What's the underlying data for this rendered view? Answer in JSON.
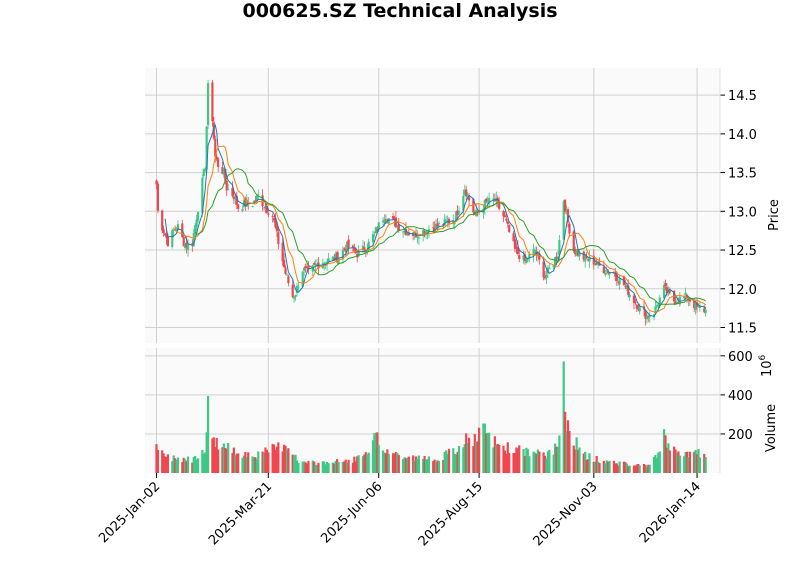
{
  "chart_data": {
    "type": "candlestick",
    "title": "000625.SZ Technical Analysis",
    "colors": {
      "up": "#3dc985",
      "down": "#f0464f",
      "ma_short": "#1f77b4",
      "ma_mid": "#ff7f0e",
      "ma_long": "#2ca02c",
      "panel_bg": "#fafafa",
      "grid": "#d0d0d0"
    },
    "price_panel": {
      "ylabel": "Price",
      "ylim": [
        11.3,
        14.85
      ],
      "yticks": [
        11.5,
        12.0,
        12.5,
        13.0,
        13.5,
        14.0,
        14.5
      ],
      "ytick_labels": [
        "11.5",
        "12.0",
        "12.5",
        "13.0",
        "13.5",
        "14.0",
        "14.5"
      ],
      "y_axis_side": "right",
      "grid": true
    },
    "volume_panel": {
      "ylabel": "Volume",
      "exponent_label": "6",
      "ylim": [
        0,
        640
      ],
      "yticks": [
        200,
        400,
        600
      ],
      "ytick_labels": [
        "200",
        "400",
        "600"
      ],
      "y_axis_side": "right",
      "grid": true
    },
    "x_axis": {
      "range": [
        "2024-12-25",
        "2026-01-30"
      ],
      "ticks": [
        "2025-01-02",
        "2025-03-21",
        "2025-06-06",
        "2025-08-15",
        "2025-11-03",
        "2026-01-14"
      ],
      "tick_labels": [
        "2025-Jan-02",
        "2025-Mar-21",
        "2025-Jun-06",
        "2025-Aug-15",
        "2025-Nov-03",
        "2026-Jan-14"
      ],
      "tick_label_rotation": 45
    },
    "price_anchors": {
      "dates": [
        "2025-01-02",
        "2025-01-03",
        "2025-01-06",
        "2025-01-08",
        "2025-01-10",
        "2025-01-14",
        "2025-01-17",
        "2025-01-21",
        "2025-01-24",
        "2025-01-27",
        "2025-02-05",
        "2025-02-07",
        "2025-02-10",
        "2025-02-12",
        "2025-02-14",
        "2025-02-18",
        "2025-02-20",
        "2025-02-25",
        "2025-02-28",
        "2025-03-05",
        "2025-03-10",
        "2025-03-14",
        "2025-03-19",
        "2025-03-24",
        "2025-03-28",
        "2025-04-02",
        "2025-04-07",
        "2025-04-09",
        "2025-04-14",
        "2025-04-18",
        "2025-04-23",
        "2025-04-28",
        "2025-05-08",
        "2025-05-15",
        "2025-05-22",
        "2025-05-29",
        "2025-06-04",
        "2025-06-10",
        "2025-06-17",
        "2025-06-24",
        "2025-07-01",
        "2025-07-08",
        "2025-07-15",
        "2025-07-22",
        "2025-07-29",
        "2025-08-01",
        "2025-08-05",
        "2025-08-12",
        "2025-08-19",
        "2025-08-26",
        "2025-09-02",
        "2025-09-09",
        "2025-09-16",
        "2025-09-23",
        "2025-09-30",
        "2025-10-09",
        "2025-10-13",
        "2025-10-15",
        "2025-10-20",
        "2025-10-27",
        "2025-11-03",
        "2025-11-10",
        "2025-11-17",
        "2025-11-24",
        "2025-12-01",
        "2025-12-05",
        "2025-12-10",
        "2025-12-15",
        "2025-12-22",
        "2025-12-29",
        "2026-01-07",
        "2026-01-14",
        "2026-01-20"
      ],
      "close": [
        13.35,
        13.0,
        12.8,
        12.7,
        12.6,
        12.75,
        12.8,
        12.6,
        12.55,
        12.6,
        13.6,
        14.6,
        14.2,
        13.7,
        13.6,
        13.5,
        13.3,
        13.2,
        13.05,
        13.1,
        13.1,
        13.2,
        13.05,
        12.95,
        12.6,
        12.2,
        11.9,
        11.95,
        12.25,
        12.2,
        12.3,
        12.35,
        12.4,
        12.55,
        12.45,
        12.55,
        12.75,
        12.95,
        12.85,
        12.75,
        12.7,
        12.75,
        12.8,
        12.85,
        12.9,
        13.05,
        13.3,
        12.95,
        13.1,
        13.15,
        12.9,
        12.5,
        12.35,
        12.5,
        12.15,
        12.45,
        13.15,
        12.95,
        12.5,
        12.4,
        12.35,
        12.25,
        12.2,
        12.05,
        11.85,
        11.75,
        11.65,
        11.7,
        12.0,
        11.85,
        11.9,
        11.75,
        11.72
      ]
    },
    "volume_anchors": {
      "dates": [
        "2025-01-02",
        "2025-01-10",
        "2025-01-27",
        "2025-02-05",
        "2025-02-07",
        "2025-02-10",
        "2025-02-14",
        "2025-02-25",
        "2025-03-14",
        "2025-04-02",
        "2025-04-07",
        "2025-04-10",
        "2025-04-18",
        "2025-05-15",
        "2025-05-29",
        "2025-06-04",
        "2025-06-10",
        "2025-06-24",
        "2025-07-15",
        "2025-08-01",
        "2025-08-05",
        "2025-08-08",
        "2025-08-19",
        "2025-08-25",
        "2025-09-02",
        "2025-09-16",
        "2025-09-30",
        "2025-10-09",
        "2025-10-13",
        "2025-10-15",
        "2025-10-20",
        "2025-10-27",
        "2025-11-10",
        "2025-12-01",
        "2025-12-10",
        "2025-12-17",
        "2025-12-22",
        "2025-12-29",
        "2026-01-14",
        "2026-01-20"
      ],
      "values": [
        120,
        80,
        70,
        130,
        330,
        180,
        150,
        110,
        90,
        150,
        120,
        60,
        50,
        60,
        90,
        180,
        120,
        80,
        70,
        120,
        180,
        150,
        210,
        160,
        130,
        110,
        90,
        130,
        520,
        280,
        170,
        90,
        60,
        40,
        40,
        80,
        180,
        110,
        100,
        90
      ]
    },
    "series": [
      {
        "name": "",
        "kind": "moving_average",
        "window": 5
      },
      {
        "name": "",
        "kind": "moving_average",
        "window": 10
      },
      {
        "name": "",
        "kind": "moving_average",
        "window": 20
      }
    ]
  }
}
